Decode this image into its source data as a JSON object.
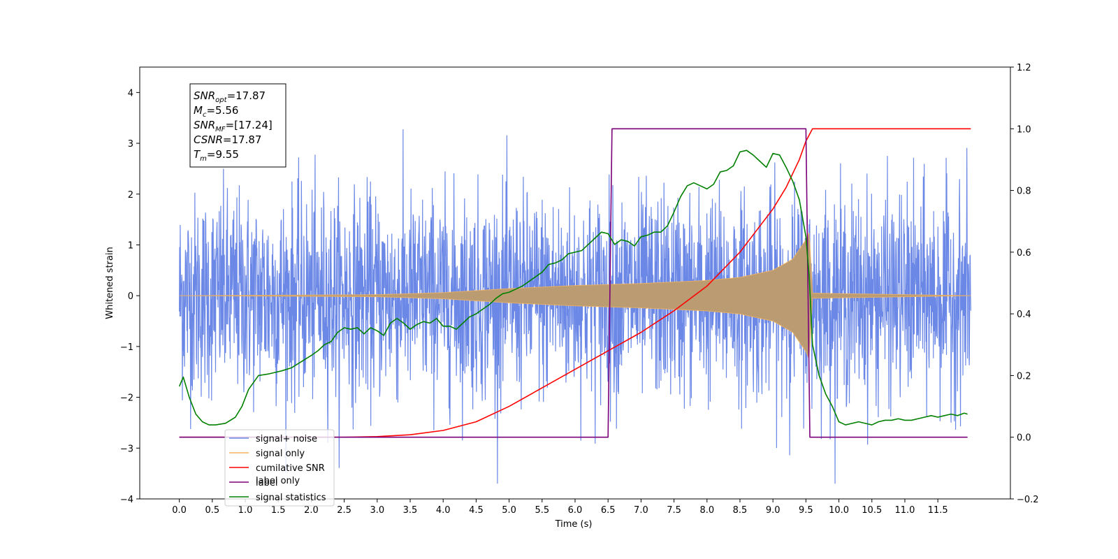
{
  "chart_data": {
    "type": "line",
    "title": "",
    "xlabel": "Time (s)",
    "ylabel": "Whitened strain",
    "y2label": "",
    "xlim": [
      -0.6,
      12.6
    ],
    "ylim": [
      -4,
      4.5
    ],
    "y2lim": [
      -0.2,
      1.2
    ],
    "grid": false,
    "legend_position": "lower-left",
    "x_ticks": [
      0.0,
      0.5,
      1.0,
      1.5,
      2.0,
      2.5,
      3.0,
      3.5,
      4.0,
      4.5,
      5.0,
      5.5,
      6.0,
      6.5,
      7.0,
      7.5,
      8.0,
      8.5,
      9.0,
      9.5,
      10.0,
      10.5,
      11.0,
      11.5
    ],
    "x_tick_labels": [
      "0.0",
      "0.5",
      "1.0",
      "1.5",
      "2.0",
      "2.5",
      "3.0",
      "3.5",
      "4.0",
      "4.5",
      "5.0",
      "5.5",
      "6.0",
      "6.5",
      "7.0",
      "7.5",
      "8.0",
      "8.5",
      "9.0",
      "9.5",
      "10.0",
      "10.5",
      "11.0",
      "11.5"
    ],
    "y_ticks": [
      -4,
      -3,
      -2,
      -1,
      0,
      1,
      2,
      3,
      4
    ],
    "y_tick_labels": [
      "−4",
      "−3",
      "−2",
      "−1",
      "0",
      "1",
      "2",
      "3",
      "4"
    ],
    "y2_ticks": [
      -0.2,
      0.0,
      0.2,
      0.4,
      0.6,
      0.8,
      1.0,
      1.2
    ],
    "y2_tick_labels": [
      "−0.2",
      "0.0",
      "0.2",
      "0.4",
      "0.6",
      "0.8",
      "1.0",
      "1.2"
    ],
    "annotation": {
      "lines": [
        {
          "sym": "SNR",
          "sub": "opt",
          "val": "=17.87"
        },
        {
          "sym": "M",
          "sub": "c",
          "val": "=5.56"
        },
        {
          "sym": "SNR",
          "sub": "MF",
          "val": "=[17.24]"
        },
        {
          "sym": "CSNR",
          "sub": "",
          "val": "=17.87"
        },
        {
          "sym": "T",
          "sub": "m",
          "val": "=9.55"
        }
      ]
    },
    "series": [
      {
        "name": "signal+ noise",
        "axis": "left",
        "color": "#6b88e6",
        "kind": "noise",
        "t_start": 0.0,
        "t_end": 12.0,
        "noise_sigma": 1.0
      },
      {
        "name": "signal only",
        "axis": "left",
        "color": "#f5b35a",
        "kind": "chirp_envelope",
        "t_start": 0.0,
        "t_end": 12.0,
        "merger_time": 9.55,
        "envelope": [
          [
            0.0,
            0.0
          ],
          [
            3.0,
            0.02
          ],
          [
            4.0,
            0.06
          ],
          [
            5.0,
            0.14
          ],
          [
            6.0,
            0.2
          ],
          [
            7.0,
            0.24
          ],
          [
            8.0,
            0.3
          ],
          [
            8.5,
            0.36
          ],
          [
            9.0,
            0.5
          ],
          [
            9.3,
            0.72
          ],
          [
            9.5,
            1.1
          ],
          [
            9.55,
            1.25
          ],
          [
            9.6,
            0.05
          ],
          [
            12.0,
            0.0
          ]
        ]
      },
      {
        "name": "cumilative SNR",
        "axis": "right",
        "color": "#ff0000",
        "x": [
          0.0,
          2.5,
          3.0,
          3.5,
          4.0,
          4.5,
          5.0,
          5.5,
          6.0,
          6.5,
          7.0,
          7.5,
          8.0,
          8.5,
          9.0,
          9.2,
          9.4,
          9.5,
          9.6,
          12.0
        ],
        "y": [
          0.0,
          0.0,
          0.002,
          0.008,
          0.022,
          0.05,
          0.1,
          0.16,
          0.22,
          0.28,
          0.34,
          0.41,
          0.49,
          0.6,
          0.74,
          0.81,
          0.9,
          0.96,
          1.0,
          1.0
        ]
      },
      {
        "name": "label",
        "axis": "right",
        "color": "#7b007b",
        "x": [
          0.0,
          6.5,
          6.56,
          9.5,
          9.56,
          11.95
        ],
        "y": [
          0.0,
          0.0,
          1.0,
          1.0,
          0.0,
          0.0
        ]
      },
      {
        "name": "signal statistics",
        "axis": "right",
        "color": "#008000",
        "x": [
          0.0,
          0.06,
          0.15,
          0.25,
          0.35,
          0.45,
          0.55,
          0.7,
          0.85,
          0.95,
          1.05,
          1.2,
          1.35,
          1.45,
          1.55,
          1.7,
          1.85,
          2.0,
          2.1,
          2.2,
          2.3,
          2.4,
          2.5,
          2.6,
          2.7,
          2.8,
          2.9,
          3.0,
          3.1,
          3.2,
          3.3,
          3.4,
          3.5,
          3.6,
          3.7,
          3.8,
          3.9,
          4.0,
          4.1,
          4.2,
          4.3,
          4.4,
          4.5,
          4.6,
          4.7,
          4.8,
          4.9,
          5.0,
          5.1,
          5.2,
          5.3,
          5.4,
          5.5,
          5.6,
          5.7,
          5.8,
          5.9,
          6.0,
          6.1,
          6.2,
          6.3,
          6.4,
          6.5,
          6.6,
          6.7,
          6.8,
          6.9,
          7.0,
          7.1,
          7.2,
          7.3,
          7.4,
          7.5,
          7.6,
          7.7,
          7.8,
          7.9,
          8.0,
          8.1,
          8.2,
          8.3,
          8.4,
          8.5,
          8.6,
          8.7,
          8.8,
          8.9,
          9.0,
          9.1,
          9.2,
          9.3,
          9.4,
          9.5,
          9.55,
          9.6,
          9.7,
          9.8,
          9.9,
          10.0,
          10.1,
          10.2,
          10.3,
          10.4,
          10.5,
          10.6,
          10.7,
          10.8,
          10.9,
          11.0,
          11.1,
          11.2,
          11.3,
          11.4,
          11.5,
          11.6,
          11.7,
          11.8,
          11.9,
          11.95
        ],
        "y": [
          0.165,
          0.195,
          0.13,
          0.075,
          0.05,
          0.04,
          0.04,
          0.045,
          0.065,
          0.1,
          0.155,
          0.2,
          0.205,
          0.21,
          0.215,
          0.225,
          0.245,
          0.265,
          0.28,
          0.3,
          0.31,
          0.34,
          0.355,
          0.35,
          0.355,
          0.335,
          0.355,
          0.345,
          0.33,
          0.37,
          0.385,
          0.37,
          0.35,
          0.365,
          0.375,
          0.37,
          0.385,
          0.36,
          0.36,
          0.35,
          0.37,
          0.39,
          0.4,
          0.415,
          0.43,
          0.45,
          0.465,
          0.47,
          0.48,
          0.49,
          0.505,
          0.52,
          0.535,
          0.56,
          0.565,
          0.575,
          0.595,
          0.6,
          0.605,
          0.625,
          0.645,
          0.665,
          0.66,
          0.625,
          0.64,
          0.635,
          0.62,
          0.65,
          0.655,
          0.665,
          0.665,
          0.685,
          0.73,
          0.78,
          0.815,
          0.825,
          0.815,
          0.805,
          0.82,
          0.86,
          0.865,
          0.88,
          0.925,
          0.93,
          0.915,
          0.895,
          0.875,
          0.92,
          0.915,
          0.875,
          0.83,
          0.77,
          0.65,
          0.52,
          0.3,
          0.2,
          0.14,
          0.1,
          0.05,
          0.04,
          0.045,
          0.05,
          0.045,
          0.04,
          0.05,
          0.055,
          0.055,
          0.06,
          0.055,
          0.055,
          0.06,
          0.065,
          0.07,
          0.065,
          0.07,
          0.075,
          0.07,
          0.078,
          0.075
        ]
      }
    ]
  },
  "legend": {
    "items": [
      {
        "label": "signal+ noise",
        "color": "#6b88e6"
      },
      {
        "label": "signal only",
        "color": "#f5b35a"
      },
      {
        "label": "cumilative SNR",
        "color": "#ff0000"
      },
      {
        "label": "label",
        "color": "#7b007b"
      },
      {
        "label": "signal statistics",
        "color": "#008000"
      }
    ],
    "hidden_label": "label only"
  }
}
